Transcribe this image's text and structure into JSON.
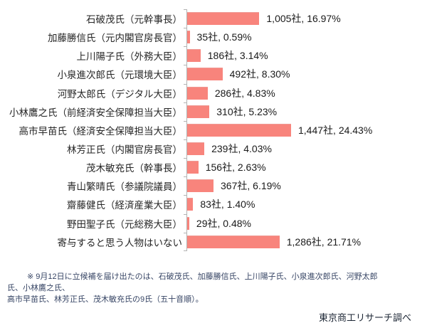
{
  "chart_data": {
    "type": "bar",
    "orientation": "horizontal",
    "title": "",
    "xlabel": "",
    "ylabel": "",
    "grid": false,
    "legend": false,
    "unit": "社",
    "bar_color": "#f8847c",
    "axis_color": "#b3b3b3",
    "max_value": 1447,
    "categories": [
      "石破茂氏（元幹事長）",
      "加藤勝信氏（元内閣官房長官）",
      "上川陽子氏（外務大臣）",
      "小泉進次郎氏（元環境大臣）",
      "河野太郎氏（デジタル大臣）",
      "小林鷹之氏（前経済安全保障担当大臣）",
      "高市早苗氏（経済安全保障担当大臣）",
      "林芳正氏（内閣官房長官）",
      "茂木敏充氏（幹事長）",
      "青山繁晴氏（参議院議員）",
      "齋藤健氏（経済産業大臣）",
      "野田聖子氏（元総務大臣）",
      "寄与すると思う人物はいない"
    ],
    "values": [
      1005,
      35,
      186,
      492,
      286,
      310,
      1447,
      239,
      156,
      367,
      83,
      29,
      1286
    ],
    "percents": [
      16.97,
      0.59,
      3.14,
      8.3,
      4.83,
      5.23,
      24.43,
      4.03,
      2.63,
      6.19,
      1.4,
      0.48,
      21.71
    ],
    "value_labels": [
      "1,005社, 16.97%",
      "35社, 0.59%",
      "186社, 3.14%",
      "492社, 8.30%",
      "286社, 4.83%",
      "310社, 5.23%",
      "1,447社, 24.43%",
      "239社, 4.03%",
      "156社, 2.63%",
      "367社, 6.19%",
      "83社, 1.40%",
      "29社, 0.48%",
      "1,286社, 21.71%"
    ]
  },
  "footnote": {
    "line1": "※ 9月12日に立候補を届け出たのは、石破茂氏、加藤勝信氏、上川陽子氏、小泉進次郎氏、河野太郎氏、小林鷹之氏、",
    "line2": "高市早苗氏、林芳正氏、茂木敏充氏の9氏（五十音順）。"
  },
  "source": "東京商工リサーチ調べ"
}
